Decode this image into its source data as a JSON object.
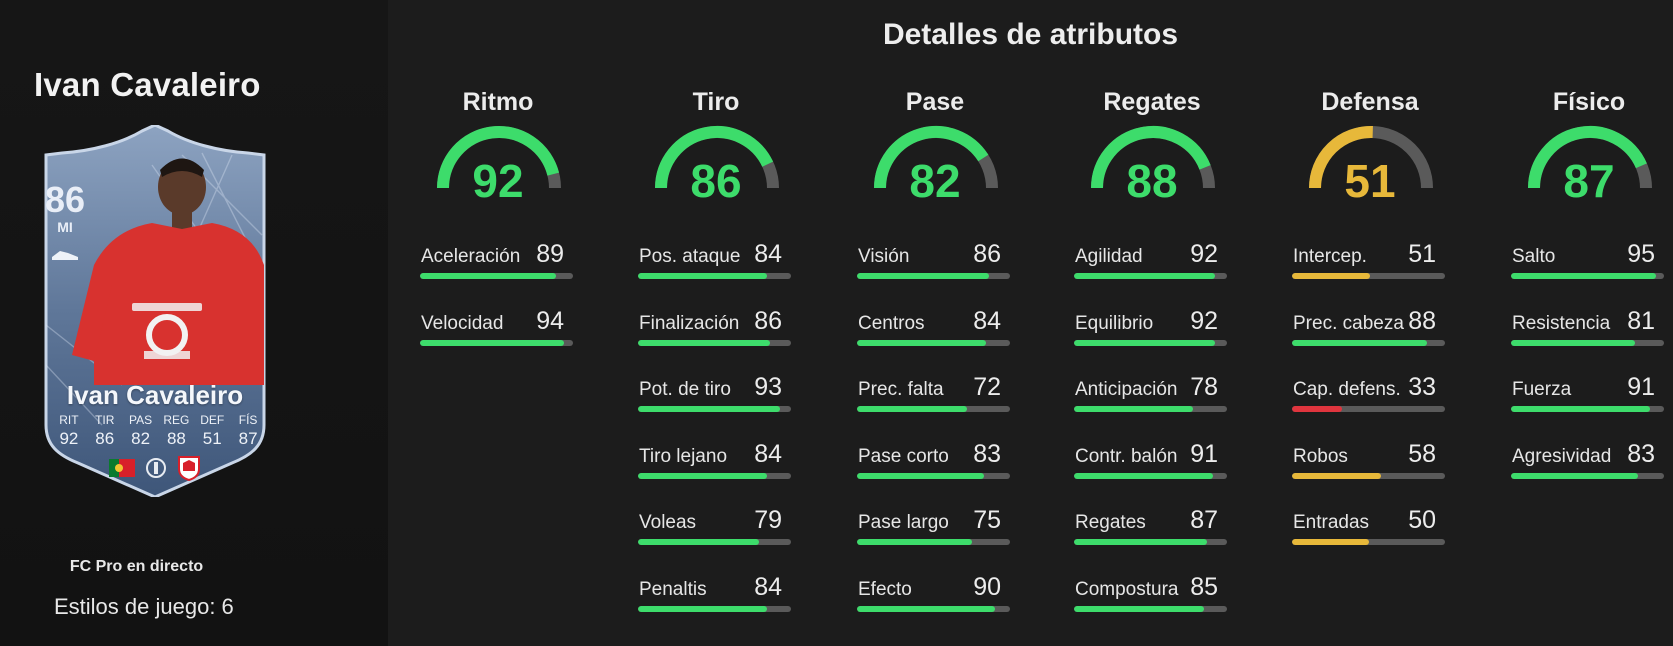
{
  "player": {
    "name": "Ivan Cavaleiro",
    "card_name": "Ivan Cavaleiro",
    "rating": "86",
    "position": "MI",
    "card_type": "FC Pro en directo",
    "playstyles_label": "Estilos de juego:",
    "playstyles_count": "6",
    "card_stats": [
      {
        "label": "RIT",
        "value": "92"
      },
      {
        "label": "TIR",
        "value": "86"
      },
      {
        "label": "PAS",
        "value": "82"
      },
      {
        "label": "REG",
        "value": "88"
      },
      {
        "label": "DEF",
        "value": "51"
      },
      {
        "label": "FÍS",
        "value": "87"
      }
    ],
    "badges": [
      "portugal-flag",
      "ligue-1-badge",
      "lille-crest"
    ]
  },
  "section_title": "Detalles de atributos",
  "colors": {
    "green": "#3ddc6b",
    "yellow": "#e7b83a",
    "red": "#e0353e",
    "track": "#5a5a5a",
    "background": "#1c1c1c",
    "card_blue": "#5a7396"
  },
  "categories": [
    {
      "name": "Ritmo",
      "value": "92",
      "stats": [
        {
          "label": "Aceleración",
          "value": "89"
        },
        {
          "label": "Velocidad",
          "value": "94"
        }
      ]
    },
    {
      "name": "Tiro",
      "value": "86",
      "stats": [
        {
          "label": "Pos. ataque",
          "value": "84"
        },
        {
          "label": "Finalización",
          "value": "86"
        },
        {
          "label": "Pot. de tiro",
          "value": "93"
        },
        {
          "label": "Tiro lejano",
          "value": "84"
        },
        {
          "label": "Voleas",
          "value": "79"
        },
        {
          "label": "Penaltis",
          "value": "84"
        }
      ]
    },
    {
      "name": "Pase",
      "value": "82",
      "stats": [
        {
          "label": "Visión",
          "value": "86"
        },
        {
          "label": "Centros",
          "value": "84"
        },
        {
          "label": "Prec. falta",
          "value": "72"
        },
        {
          "label": "Pase corto",
          "value": "83"
        },
        {
          "label": "Pase largo",
          "value": "75"
        },
        {
          "label": "Efecto",
          "value": "90"
        }
      ]
    },
    {
      "name": "Regates",
      "value": "88",
      "stats": [
        {
          "label": "Agilidad",
          "value": "92"
        },
        {
          "label": "Equilibrio",
          "value": "92"
        },
        {
          "label": "Anticipación",
          "value": "78"
        },
        {
          "label": "Contr. balón",
          "value": "91"
        },
        {
          "label": "Regates",
          "value": "87"
        },
        {
          "label": "Compostura",
          "value": "85"
        }
      ]
    },
    {
      "name": "Defensa",
      "value": "51",
      "stats": [
        {
          "label": "Intercep.",
          "value": "51"
        },
        {
          "label": "Prec. cabeza",
          "value": "88"
        },
        {
          "label": "Cap. defens.",
          "value": "33"
        },
        {
          "label": "Robos",
          "value": "58"
        },
        {
          "label": "Entradas",
          "value": "50"
        }
      ]
    },
    {
      "name": "Físico",
      "value": "87",
      "stats": [
        {
          "label": "Salto",
          "value": "95"
        },
        {
          "label": "Resistencia",
          "value": "81"
        },
        {
          "label": "Fuerza",
          "value": "91"
        },
        {
          "label": "Agresividad",
          "value": "83"
        }
      ]
    }
  ]
}
